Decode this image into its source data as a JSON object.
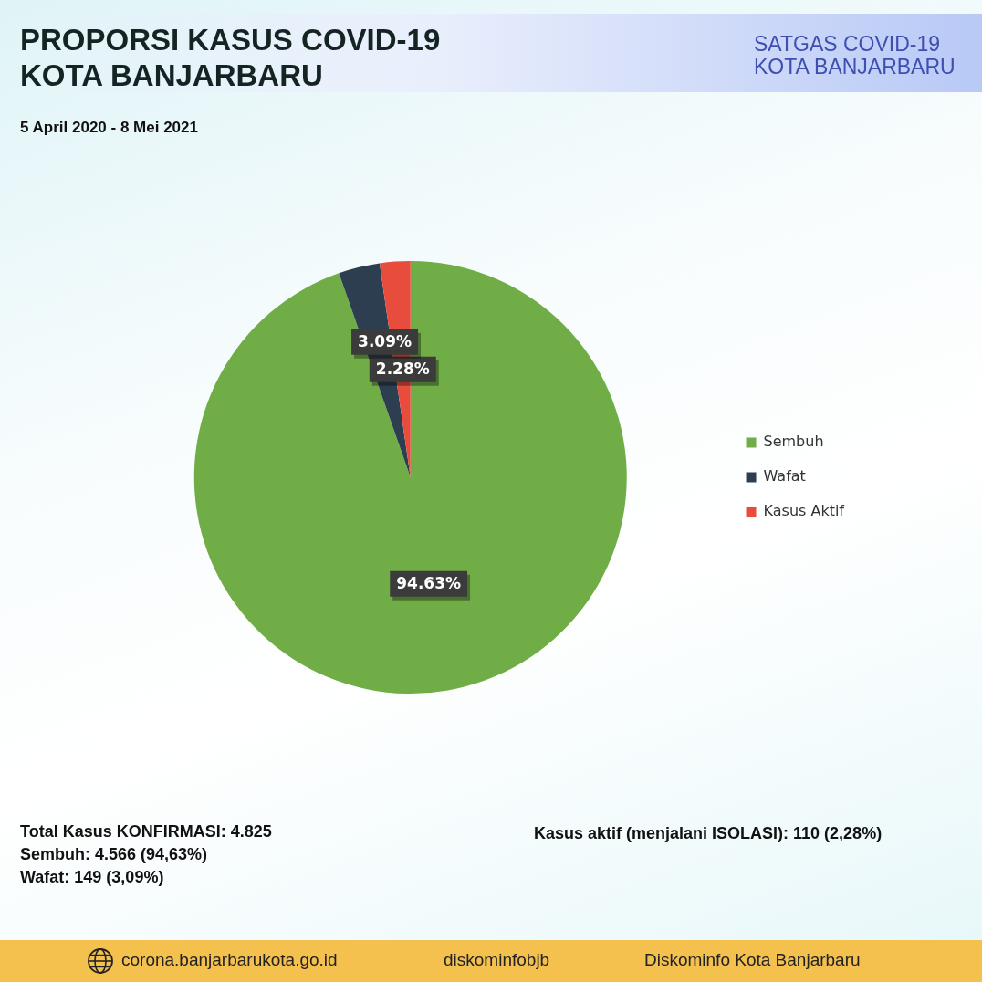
{
  "chart_data": {
    "type": "pie",
    "title": "PROPORSI KASUS COVID-19\nKOTA BANJARBARU",
    "subtitle": "5 April 2020 - 8 Mei 2021",
    "categories": [
      "Sembuh",
      "Wafat",
      "Kasus Aktif"
    ],
    "values": [
      94.63,
      3.09,
      2.28
    ],
    "colors": [
      "#70ad47",
      "#2c3e50",
      "#e74c3c"
    ],
    "value_labels": [
      "94.63%",
      "3.09%",
      "2.28%"
    ],
    "legend": "right",
    "annotations": [
      "Total Kasus KONFIRMASI: 4.825",
      "Sembuh: 4.566 (94,63%)",
      "Wafat: 149 (3,09%)",
      "Kasus aktif (menjalani ISOLASI): 110 (2,28%)",
      "SATGAS COVID-19\nKOTA BANJARBARU",
      "corona.banjarbarukota.go.id",
      "diskominfobjb",
      "Diskominfo Kota Banjarbaru"
    ]
  }
}
